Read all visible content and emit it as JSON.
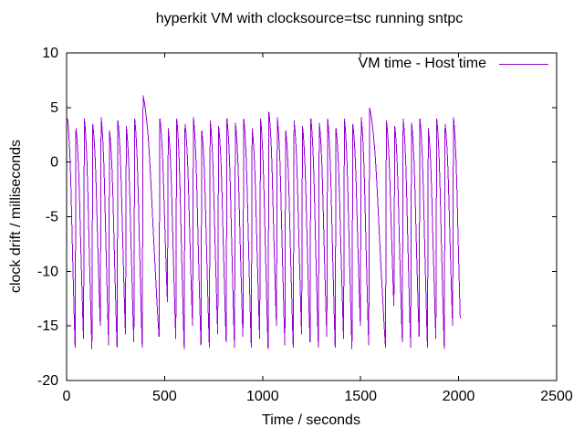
{
  "chart_data": {
    "type": "line",
    "title": "hyperkit VM with clocksource=tsc running sntpc",
    "xlabel": "Time / seconds",
    "ylabel": "clock drift / milliseconds",
    "xlim": [
      0,
      2500
    ],
    "ylim": [
      -20,
      10
    ],
    "x_ticks": [
      0,
      500,
      1000,
      1500,
      2000,
      2500
    ],
    "y_ticks": [
      10,
      5,
      0,
      -5,
      -10,
      -15,
      -20
    ],
    "grid": false,
    "colors": {
      "axis": "#000000",
      "text": "#000000",
      "background": "#ffffff"
    },
    "legend": {
      "position": "top-right-inside",
      "entries": [
        {
          "label": "VM time - Host time",
          "color": "#9400d3"
        }
      ]
    },
    "series": [
      {
        "name": "VM time - Host time",
        "color": "#9400d3",
        "shape_summary": "sawtooth clock-drift oscillation between about +4 ms and -17 ms from t=0 to t=2010 s with period about 43 s; taller spikes reach +6.1 ms at ~390 s, +4.6 ms at ~1040 s and +5.0 ms at ~1555 s; the big spikes are followed by a slow stepped descent and one shallow trough near -13 ms",
        "waveform": {
          "x_start": 5,
          "x_end": 2010,
          "period": 42.8,
          "samples_per_cycle": 10,
          "peak_pattern": [
            4.0,
            3.1,
            4.0,
            3.5,
            4.1,
            2.9,
            3.8,
            3.3,
            4.0,
            3.6
          ],
          "trough_pattern": [
            -17,
            -16.2,
            -17.1,
            -15.0,
            -16.8,
            -17,
            -15.8,
            -16.5,
            -17,
            -16
          ],
          "descent_value_fractions": [
            0,
            0.04,
            0.1,
            0.18,
            0.3,
            0.45,
            0.6,
            0.74,
            0.88,
            1.0
          ],
          "spikes": [
            {
              "x": 390,
              "peak": 6.1,
              "stretch": 2,
              "after_cycles": 1,
              "after_trough": -12.8
            },
            {
              "x": 1040,
              "peak": 4.6,
              "stretch": 1,
              "after_cycles": 0,
              "after_trough": -17
            },
            {
              "x": 1555,
              "peak": 5.0,
              "stretch": 2,
              "after_cycles": 1,
              "after_trough": -13.2
            }
          ]
        }
      }
    ]
  }
}
